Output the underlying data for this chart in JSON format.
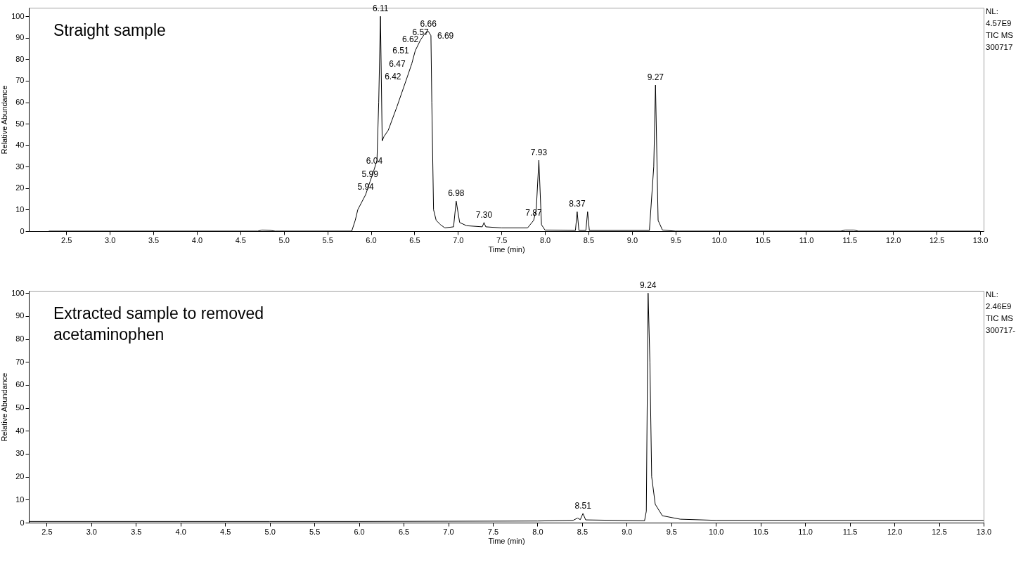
{
  "chart_data": [
    {
      "type": "line",
      "xlabel": "Time (min)",
      "ylabel": "Relative Abundance",
      "xlim": [
        2.07,
        13.04
      ],
      "ylim": [
        0,
        104
      ],
      "xticks": [
        2.5,
        {
          "value": 3,
          "label": "3.0"
        },
        3.5,
        {
          "value": 4,
          "label": "4.0"
        },
        4.5,
        {
          "value": 5,
          "label": "5.0"
        },
        5.5,
        {
          "value": 6,
          "label": "6.0"
        },
        6.5,
        {
          "value": 7,
          "label": "7.0"
        },
        7.5,
        {
          "value": 8,
          "label": "8.0"
        },
        8.5,
        {
          "value": 9,
          "label": "9.0"
        },
        9.5,
        {
          "value": 10,
          "label": "10.0"
        },
        10.5,
        {
          "value": 11,
          "label": "11.0"
        },
        11.5,
        {
          "value": 12,
          "label": "12.0"
        },
        12.5,
        {
          "value": 13,
          "label": "13.0"
        }
      ],
      "yticks": [
        0,
        10,
        20,
        30,
        40,
        50,
        60,
        70,
        80,
        90,
        100
      ],
      "x": [
        2.3,
        4.7,
        4.75,
        4.85,
        4.9,
        5.78,
        5.82,
        5.85,
        5.94,
        5.99,
        6.04,
        6.07,
        6.09,
        6.11,
        6.13,
        6.15,
        6.2,
        6.3,
        6.42,
        6.47,
        6.51,
        6.57,
        6.62,
        6.66,
        6.69,
        6.7,
        6.72,
        6.75,
        6.8,
        6.85,
        6.95,
        6.98,
        7.02,
        7.1,
        7.28,
        7.3,
        7.32,
        7.5,
        7.8,
        7.87,
        7.9,
        7.93,
        7.96,
        8.0,
        8.35,
        8.37,
        8.39,
        8.47,
        8.49,
        8.51,
        9.2,
        9.25,
        9.27,
        9.3,
        9.35,
        9.5,
        11.4,
        11.45,
        11.55,
        11.6,
        13.0
      ],
      "series": [
        {
          "color": "#000000",
          "values": [
            0,
            0,
            0.5,
            0.3,
            0,
            0,
            5,
            10,
            17,
            23,
            29,
            33,
            60,
            100,
            42,
            44,
            47,
            58,
            72,
            78,
            84,
            89,
            92,
            93,
            91,
            60,
            10,
            5,
            3,
            1.5,
            2,
            14,
            4,
            2.5,
            2,
            4,
            2,
            1.5,
            1.5,
            5,
            10,
            33,
            3,
            0.5,
            0.3,
            9,
            0.3,
            0.3,
            9,
            0.3,
            0.3,
            30,
            68,
            5,
            0.5,
            0,
            0,
            0.5,
            0.5,
            0,
            0
          ]
        }
      ],
      "annotations": [
        "Straight sample",
        "NL:\n4.57E9\nTIC  MS\n300717",
        {
          "text": "6.11",
          "x": 6.11,
          "y": 100
        },
        {
          "text": "6.66",
          "x": 6.66,
          "y": 93
        },
        {
          "text": "6.62",
          "x": 6.62,
          "y": 92
        },
        {
          "text": "6.69",
          "x": 6.69,
          "y": 91
        },
        {
          "text": "6.57",
          "x": 6.57,
          "y": 89
        },
        {
          "text": "6.51",
          "x": 6.51,
          "y": 84
        },
        {
          "text": "6.47",
          "x": 6.47,
          "y": 78
        },
        {
          "text": "6.42",
          "x": 6.42,
          "y": 72
        },
        {
          "text": "9.27",
          "x": 9.27,
          "y": 68
        },
        {
          "text": "7.93",
          "x": 7.93,
          "y": 33
        },
        {
          "text": "6.04",
          "x": 6.04,
          "y": 29
        },
        {
          "text": "5.99",
          "x": 5.99,
          "y": 23
        },
        {
          "text": "5.94",
          "x": 5.94,
          "y": 17
        },
        {
          "text": "6.98",
          "x": 6.98,
          "y": 14
        },
        {
          "text": "8.37",
          "x": 8.37,
          "y": 9
        },
        {
          "text": "7.87",
          "x": 7.87,
          "y": 5
        },
        {
          "text": "7.30",
          "x": 7.3,
          "y": 4
        }
      ]
    },
    {
      "type": "line",
      "xlabel": "Time (min)",
      "ylabel": "Relative Abundance",
      "xlim": [
        2.3,
        13.0
      ],
      "ylim": [
        0,
        101
      ],
      "xticks": [
        2.5,
        {
          "value": 3,
          "label": "3.0"
        },
        3.5,
        {
          "value": 4,
          "label": "4.0"
        },
        4.5,
        {
          "value": 5,
          "label": "5.0"
        },
        5.5,
        {
          "value": 6,
          "label": "6.0"
        },
        6.5,
        {
          "value": 7,
          "label": "7.0"
        },
        7.5,
        {
          "value": 8,
          "label": "8.0"
        },
        8.5,
        {
          "value": 9,
          "label": "9.0"
        },
        9.5,
        {
          "value": 10,
          "label": "10.0"
        },
        10.5,
        {
          "value": 11,
          "label": "11.0"
        },
        11.5,
        {
          "value": 12,
          "label": "12.0"
        },
        12.5,
        {
          "value": 13,
          "label": "13.0"
        }
      ],
      "yticks": [
        0,
        10,
        20,
        30,
        40,
        50,
        60,
        70,
        80,
        90,
        100
      ],
      "x": [
        2.3,
        3.0,
        4.0,
        5.0,
        6.0,
        7.0,
        8.0,
        8.4,
        8.45,
        8.48,
        8.51,
        8.54,
        9.2,
        9.22,
        9.24,
        9.26,
        9.28,
        9.32,
        9.4,
        9.6,
        10.0,
        13.0
      ],
      "series": [
        {
          "color": "#000000",
          "values": [
            0.5,
            0.5,
            0.5,
            0.5,
            0.5,
            0.6,
            0.7,
            1,
            2,
            1.3,
            4,
            1.2,
            0.8,
            5,
            100,
            70,
            20,
            8,
            3,
            1.5,
            1,
            1
          ]
        }
      ],
      "annotations": [
        "Extracted sample to removed acetaminophen",
        "NL:\n2.46E9\nTIC  MS\n300717-",
        {
          "text": "9.24",
          "x": 9.24,
          "y": 100
        },
        {
          "text": "8.51",
          "x": 8.51,
          "y": 4
        }
      ]
    }
  ]
}
